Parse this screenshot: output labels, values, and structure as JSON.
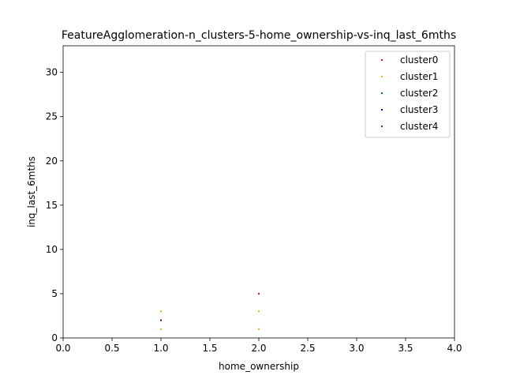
{
  "chart_data": {
    "type": "scatter",
    "title": "FeatureAgglomeration-n_clusters-5-home_ownership-vs-inq_last_6mths",
    "xlabel": "home_ownership",
    "ylabel": "inq_last_6mths",
    "xlim": [
      0,
      4
    ],
    "ylim": [
      0,
      33
    ],
    "x_ticks": [
      0,
      0.5,
      1,
      1.5,
      2,
      2.5,
      3,
      3.5,
      4
    ],
    "x_tick_labels": [
      "0.0",
      "0.5",
      "1.0",
      "1.5",
      "2.0",
      "2.5",
      "3.0",
      "3.5",
      "4.0"
    ],
    "y_ticks": [
      0,
      5,
      10,
      15,
      20,
      25,
      30
    ],
    "y_tick_labels": [
      "0",
      "5",
      "10",
      "15",
      "20",
      "25",
      "30"
    ],
    "grid": false,
    "legend_position": "top-right",
    "series": [
      {
        "name": "cluster0",
        "color": "#ff0000",
        "points": [
          [
            2,
            5
          ],
          [
            1,
            2
          ]
        ]
      },
      {
        "name": "cluster1",
        "color": "#ffa500",
        "points": [
          [
            1,
            3
          ],
          [
            1,
            1
          ],
          [
            2,
            3
          ],
          [
            2,
            1
          ],
          [
            1,
            2
          ]
        ]
      },
      {
        "name": "cluster2",
        "color": "#008000",
        "points": []
      },
      {
        "name": "cluster3",
        "color": "#0000ff",
        "points": [
          [
            1,
            2
          ]
        ]
      },
      {
        "name": "cluster4",
        "color": "#800080",
        "points": [
          [
            1,
            2
          ]
        ]
      }
    ]
  }
}
